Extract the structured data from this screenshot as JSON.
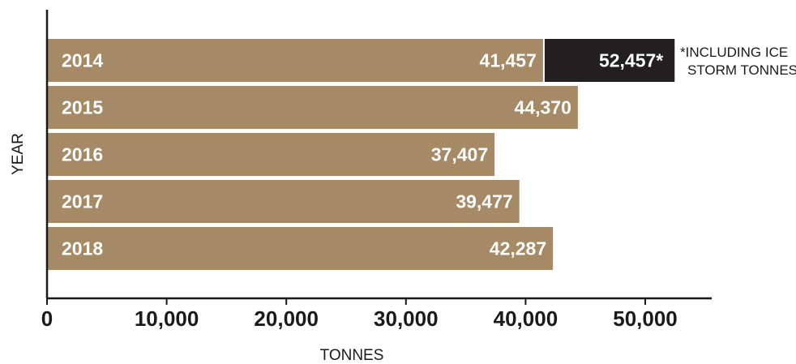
{
  "chart_data": {
    "type": "bar",
    "orientation": "horizontal",
    "title": "",
    "xlabel": "TONNES",
    "ylabel": "YEAR",
    "xlim": [
      0,
      55000
    ],
    "x_ticks": [
      0,
      10000,
      20000,
      30000,
      40000,
      50000
    ],
    "x_tick_labels": [
      "0",
      "10,000",
      "20,000",
      "30,000",
      "40,000",
      "50,000"
    ],
    "grid": false,
    "legend": "none",
    "categories": [
      "2014",
      "2015",
      "2016",
      "2017",
      "2018"
    ],
    "values": [
      41457,
      44370,
      37407,
      39477,
      42287
    ],
    "value_labels": [
      "41,457",
      "44,370",
      "37,407",
      "39,477",
      "42,287"
    ],
    "extra_segment": {
      "category": "2014",
      "total": 52457,
      "label": "52,457*",
      "note": [
        "*INCLUDING ICE",
        "STORM TONNES"
      ]
    },
    "colors": {
      "bar": "#A58A65",
      "extra": "#231F20",
      "axis": "#1a1a1a"
    }
  }
}
